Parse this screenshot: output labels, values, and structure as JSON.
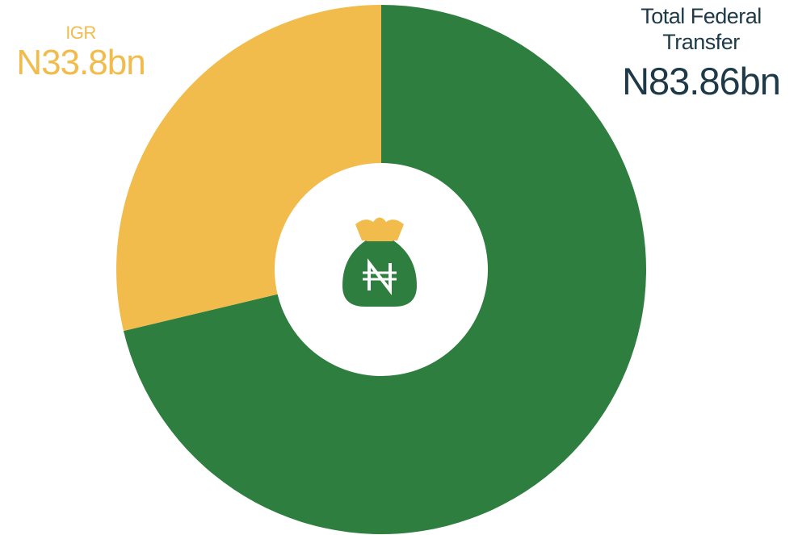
{
  "chart_data": {
    "type": "pie",
    "donut": true,
    "categories": [
      "Total Federal Transfer",
      "IGR"
    ],
    "values": [
      83.86,
      33.8
    ],
    "value_labels": [
      "N83.86bn",
      "N33.8bn"
    ],
    "colors": [
      "#2e7f3f",
      "#f2bc4c"
    ]
  }
}
